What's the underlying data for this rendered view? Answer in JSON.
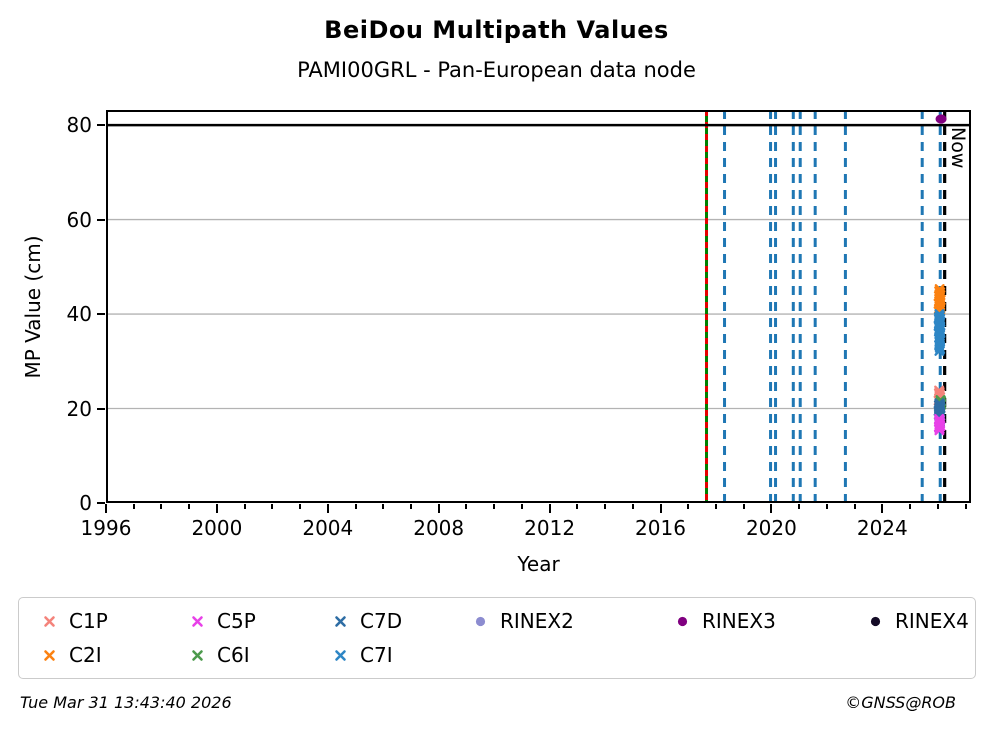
{
  "header": {
    "title": "BeiDou Multipath Values",
    "subtitle": "PAMI00GRL - Pan-European data node"
  },
  "footer": {
    "timestamp": "Tue Mar 31 13:43:40 2026",
    "credit": "©GNSS@ROB"
  },
  "chart_data": {
    "type": "scatter",
    "title": "BeiDou Multipath Values",
    "subtitle": "PAMI00GRL - Pan-European data node",
    "xlabel": "Year",
    "ylabel": "MP Value (cm)",
    "xlim": [
      1996,
      2027.2
    ],
    "ylim": [
      0,
      83.2
    ],
    "x_major_ticks": [
      1996,
      2000,
      2004,
      2008,
      2012,
      2016,
      2020,
      2024
    ],
    "x_minor": {
      "start": 1996,
      "end": 2027,
      "step": 1
    },
    "y_ticks": [
      0,
      20,
      40,
      60,
      80
    ],
    "grid_y": [
      20,
      40,
      60
    ],
    "grid_color": "#b3b3b3",
    "threshold_line": {
      "y": 80,
      "color": "#000000"
    },
    "now_line": {
      "x": 2026.25,
      "label": "Now",
      "color": "#000000"
    },
    "firmware_line": {
      "x": 2017.66,
      "solid_color": "#008000",
      "dash_color": "#e60000"
    },
    "event_lines": {
      "color": "#1f77b4",
      "years": [
        2018.31,
        2019.97,
        2020.15,
        2020.79,
        2021.04,
        2021.58,
        2022.67,
        2025.44,
        2026.09
      ]
    },
    "legend_entries": [
      {
        "label": "C1P",
        "color": "#f4837b",
        "marker": "x"
      },
      {
        "label": "C5P",
        "color": "#e841e8",
        "marker": "x"
      },
      {
        "label": "C7D",
        "color": "#2e6da4",
        "marker": "x"
      },
      {
        "label": "RINEX2",
        "color": "#8c8cd0",
        "marker": "circle"
      },
      {
        "label": "RINEX3",
        "color": "#800080",
        "marker": "circle"
      },
      {
        "label": "RINEX4",
        "color": "#140b26",
        "marker": "circle"
      },
      {
        "label": "C2I",
        "color": "#fb8111",
        "marker": "x"
      },
      {
        "label": "C6I",
        "color": "#4c9a4c",
        "marker": "x"
      },
      {
        "label": "C7I",
        "color": "#2e86c5",
        "marker": "x"
      }
    ],
    "series": [
      {
        "name": "C2I",
        "color": "#fb8111",
        "marker": "x",
        "points": [
          [
            2026.07,
            45.3
          ],
          [
            2026.05,
            44.8
          ],
          [
            2026.09,
            44.6
          ],
          [
            2026.06,
            44.2
          ],
          [
            2026.1,
            44.0
          ],
          [
            2026.04,
            43.8
          ],
          [
            2026.08,
            43.5
          ],
          [
            2026.06,
            43.2
          ],
          [
            2026.11,
            43.0
          ],
          [
            2026.05,
            42.7
          ],
          [
            2026.08,
            42.4
          ],
          [
            2026.03,
            42.2
          ],
          [
            2026.09,
            41.9
          ],
          [
            2026.06,
            41.6
          ],
          [
            2026.1,
            41.3
          ],
          [
            2026.04,
            41.1
          ],
          [
            2026.07,
            40.8
          ],
          [
            2026.05,
            40.5
          ],
          [
            2026.09,
            40.9
          ],
          [
            2026.07,
            42.0
          ]
        ]
      },
      {
        "name": "C7I",
        "color": "#2e86c5",
        "marker": "x",
        "points": [
          [
            2026.06,
            40.0
          ],
          [
            2026.08,
            39.6
          ],
          [
            2026.04,
            39.3
          ],
          [
            2026.09,
            39.0
          ],
          [
            2026.06,
            38.7
          ],
          [
            2026.1,
            38.4
          ],
          [
            2026.05,
            38.1
          ],
          [
            2026.07,
            37.8
          ],
          [
            2026.03,
            37.5
          ],
          [
            2026.09,
            37.2
          ],
          [
            2026.06,
            36.9
          ],
          [
            2026.08,
            36.6
          ],
          [
            2026.04,
            36.3
          ],
          [
            2026.1,
            36.0
          ],
          [
            2026.06,
            35.7
          ],
          [
            2026.07,
            35.3
          ],
          [
            2026.05,
            35.0
          ],
          [
            2026.09,
            34.6
          ],
          [
            2026.06,
            34.2
          ],
          [
            2026.08,
            33.8
          ],
          [
            2026.05,
            33.4
          ],
          [
            2026.07,
            33.0
          ],
          [
            2026.09,
            32.6
          ],
          [
            2026.06,
            32.2
          ],
          [
            2026.08,
            34.9
          ],
          [
            2026.04,
            38.9
          ]
        ]
      },
      {
        "name": "C1P",
        "color": "#f4837b",
        "marker": "x",
        "points": [
          [
            2026.05,
            23.8
          ],
          [
            2026.07,
            23.5
          ],
          [
            2026.04,
            23.2
          ],
          [
            2026.08,
            23.0
          ],
          [
            2026.06,
            22.7
          ],
          [
            2026.09,
            22.4
          ],
          [
            2026.05,
            22.1
          ],
          [
            2026.07,
            21.9
          ],
          [
            2026.03,
            21.7
          ],
          [
            2026.08,
            21.5
          ],
          [
            2026.06,
            23.3
          ],
          [
            2026.07,
            22.2
          ]
        ]
      },
      {
        "name": "C6I",
        "color": "#4c9a4c",
        "marker": "x",
        "points": [
          [
            2026.1,
            21.8
          ],
          [
            2026.12,
            21.5
          ],
          [
            2026.09,
            21.3
          ],
          [
            2026.11,
            21.1
          ],
          [
            2026.13,
            20.9
          ],
          [
            2026.1,
            20.7
          ],
          [
            2026.12,
            21.6
          ],
          [
            2026.11,
            20.8
          ]
        ]
      },
      {
        "name": "C7D",
        "color": "#2e6da4",
        "marker": "x",
        "points": [
          [
            2026.06,
            21.1
          ],
          [
            2026.08,
            20.9
          ],
          [
            2026.04,
            20.7
          ],
          [
            2026.09,
            20.5
          ],
          [
            2026.06,
            20.3
          ],
          [
            2026.1,
            20.1
          ],
          [
            2026.05,
            19.9
          ],
          [
            2026.07,
            19.7
          ],
          [
            2026.03,
            19.5
          ],
          [
            2026.09,
            19.3
          ],
          [
            2026.06,
            19.1
          ],
          [
            2026.08,
            18.9
          ],
          [
            2026.04,
            18.7
          ],
          [
            2026.1,
            18.5
          ],
          [
            2026.06,
            18.3
          ],
          [
            2026.07,
            18.0
          ],
          [
            2026.05,
            17.8
          ],
          [
            2026.09,
            17.6
          ],
          [
            2026.06,
            17.4
          ],
          [
            2026.08,
            17.2
          ],
          [
            2026.05,
            20.0
          ],
          [
            2026.07,
            18.6
          ]
        ]
      },
      {
        "name": "C5P",
        "color": "#e841e8",
        "marker": "x",
        "points": [
          [
            2026.05,
            17.8
          ],
          [
            2026.08,
            17.5
          ],
          [
            2026.04,
            17.2
          ],
          [
            2026.09,
            16.9
          ],
          [
            2026.06,
            16.6
          ],
          [
            2026.1,
            16.3
          ],
          [
            2026.05,
            16.0
          ],
          [
            2026.07,
            15.7
          ],
          [
            2026.06,
            15.4
          ],
          [
            2026.08,
            16.8
          ],
          [
            2026.04,
            16.1
          ],
          [
            2026.07,
            17.0
          ]
        ]
      },
      {
        "name": "RINEX2",
        "color": "#8c8cd0",
        "marker": "circle",
        "points": []
      },
      {
        "name": "RINEX3",
        "color": "#800080",
        "marker": "circle",
        "points": [
          [
            2026.12,
            81.3
          ]
        ]
      },
      {
        "name": "RINEX4",
        "color": "#140b26",
        "marker": "circle",
        "points": []
      }
    ],
    "legend_position": "below",
    "grid": "horizontal-only"
  }
}
